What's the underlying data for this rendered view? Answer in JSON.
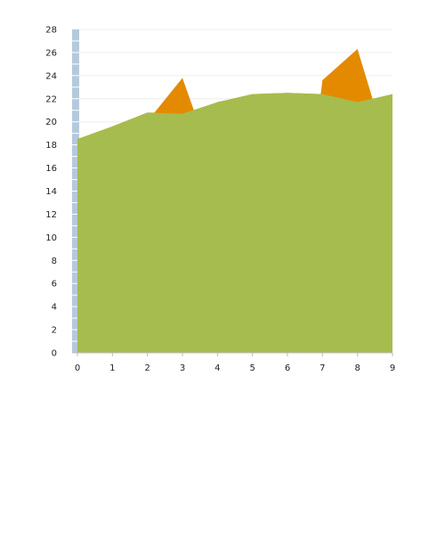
{
  "colors": {
    "background": "#ffffff",
    "grid": "#eeeeee",
    "axis": "#bbbbbb",
    "tick_text": "#222222",
    "axis_strip": "#b5c9dc",
    "axis_strip_stripe": "#ffffff",
    "series_orange": "#e48a00",
    "series_green": "#a6bc4e"
  },
  "chart_data": {
    "type": "area",
    "title": "",
    "xlabel": "",
    "ylabel": "",
    "x": [
      0,
      1,
      2,
      3,
      4,
      5,
      6,
      7,
      8,
      9
    ],
    "xlim": [
      0,
      9
    ],
    "ylim": [
      0,
      28
    ],
    "x_ticks": [
      "0",
      "1",
      "2",
      "3",
      "4",
      "5",
      "6",
      "7",
      "8",
      "9"
    ],
    "y_ticks": [
      "0",
      "2",
      "4",
      "6",
      "8",
      "10",
      "12",
      "14",
      "16",
      "18",
      "20",
      "22",
      "24",
      "26",
      "28"
    ],
    "grid": true,
    "legend": "none",
    "series": [
      {
        "points": [
          [
            0,
            18.5
          ],
          [
            1,
            19.6
          ],
          [
            2,
            20.8
          ],
          [
            2.2,
            20.8
          ],
          [
            3,
            23.8
          ],
          [
            3.35,
            20.8
          ],
          [
            4,
            21.7
          ],
          [
            5,
            22.4
          ],
          [
            6,
            22.5
          ],
          [
            6.95,
            22.4
          ],
          [
            7,
            23.6
          ],
          [
            8,
            26.3
          ],
          [
            8.45,
            21.8
          ],
          [
            9,
            22.4
          ]
        ]
      },
      {
        "points": [
          [
            0,
            18.5
          ],
          [
            1,
            19.6
          ],
          [
            2,
            20.8
          ],
          [
            3,
            20.7
          ],
          [
            4,
            21.7
          ],
          [
            5,
            22.4
          ],
          [
            6,
            22.5
          ],
          [
            7,
            22.4
          ],
          [
            8,
            21.7
          ],
          [
            9,
            22.4
          ]
        ]
      }
    ]
  }
}
